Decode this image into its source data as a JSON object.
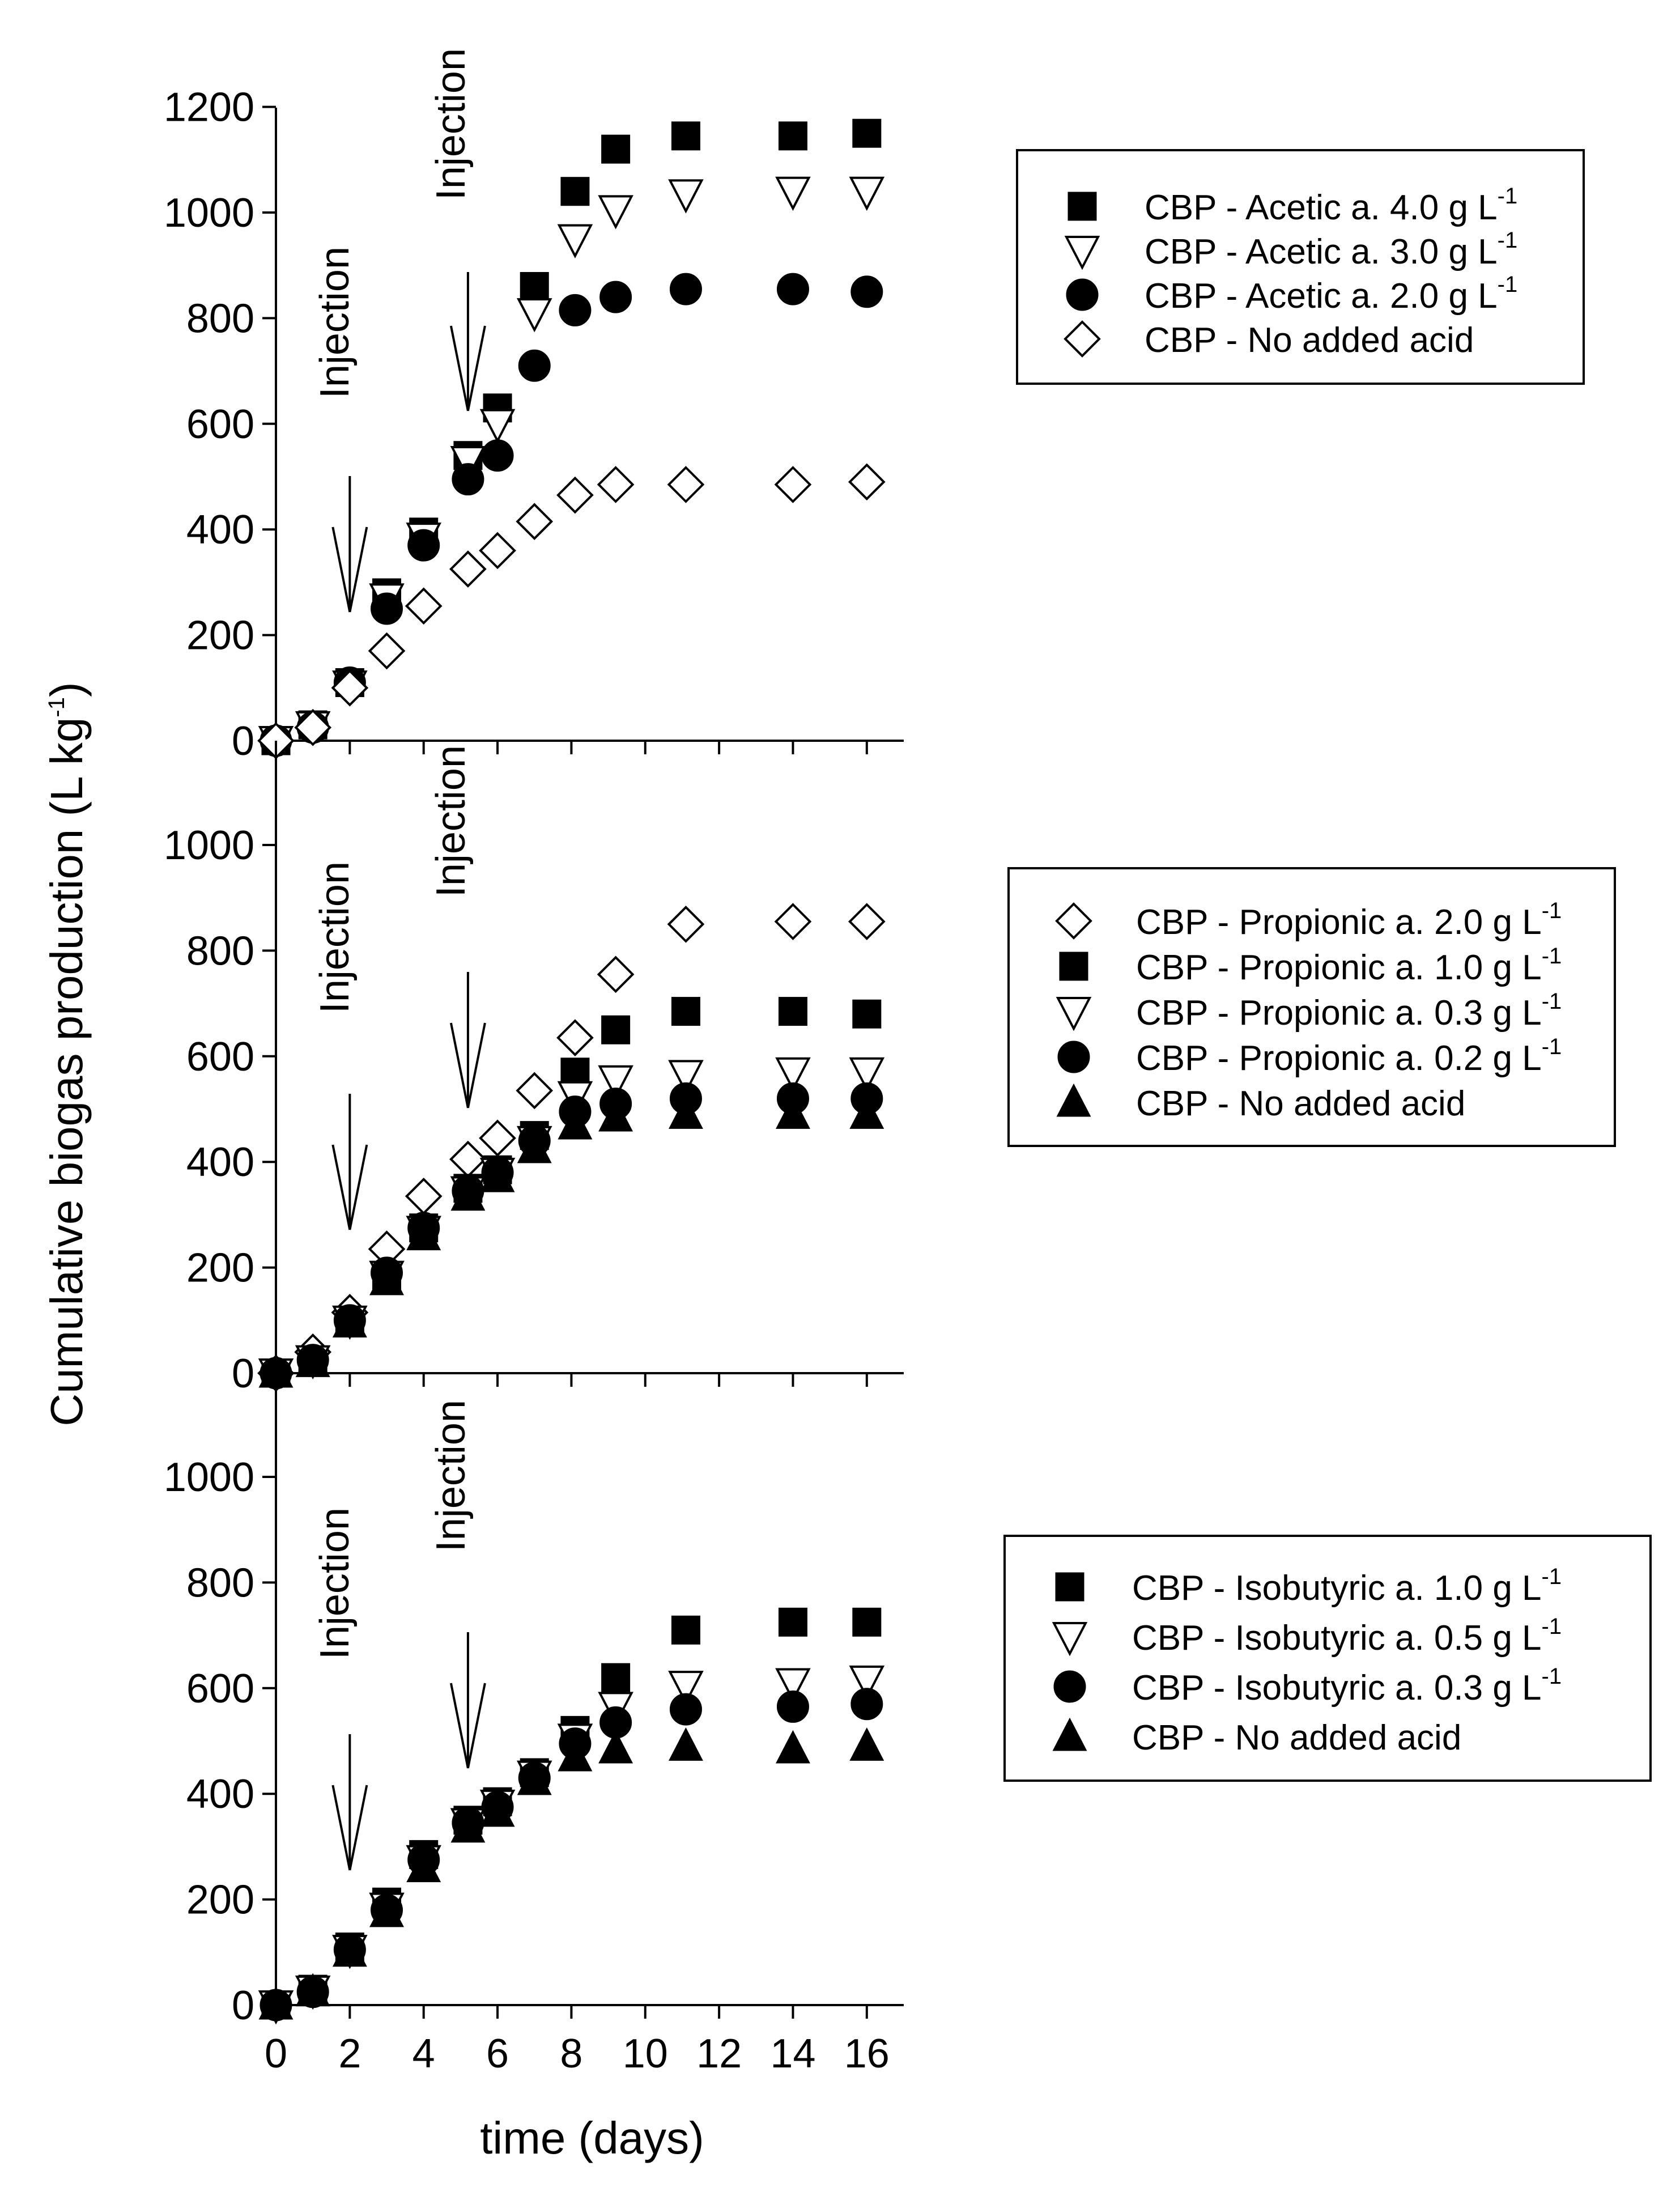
{
  "chart_data": [
    {
      "type": "scatter",
      "panel": "top",
      "ylim": [
        0,
        1200
      ],
      "yticks": [
        0,
        200,
        400,
        600,
        800,
        1000,
        1200
      ],
      "injections": [
        {
          "x": 2,
          "label": "Injection"
        },
        {
          "x": 5.2,
          "label": "Injection"
        }
      ],
      "legend": {
        "placement": "top-right"
      },
      "series": [
        {
          "name": "CBP - Acetic a. 4.0 g L",
          "sup": "-1",
          "marker": "square-filled",
          "x": [
            0,
            1,
            2,
            3,
            4,
            5.2,
            6,
            7,
            8.1,
            9.2,
            11.1,
            14,
            16
          ],
          "y": [
            0,
            30,
            110,
            280,
            395,
            540,
            630,
            860,
            1040,
            1120,
            1145,
            1145,
            1150
          ]
        },
        {
          "name": "CBP - Acetic a. 3.0 g L",
          "sup": "-1",
          "marker": "triangle-down-open",
          "x": [
            0,
            1,
            2,
            3,
            4,
            5.2,
            6,
            7,
            8.1,
            9.2,
            11.1,
            14,
            16
          ],
          "y": [
            0,
            28,
            105,
            270,
            385,
            530,
            600,
            810,
            950,
            1005,
            1035,
            1040,
            1040
          ]
        },
        {
          "name": "CBP - Acetic a. 2.0 g L",
          "sup": "-1",
          "marker": "circle-filled",
          "x": [
            0,
            1,
            2,
            3,
            4,
            5.2,
            6,
            7,
            8.1,
            9.2,
            11.1,
            14,
            16
          ],
          "y": [
            0,
            25,
            110,
            250,
            370,
            495,
            540,
            710,
            815,
            840,
            855,
            855,
            850
          ]
        },
        {
          "name": "CBP - No added acid",
          "sup": "",
          "marker": "diamond-open",
          "x": [
            0,
            1,
            2,
            3,
            4,
            5.2,
            6,
            7,
            8.1,
            9.2,
            11.1,
            14,
            16
          ],
          "y": [
            0,
            25,
            100,
            170,
            255,
            325,
            360,
            415,
            465,
            485,
            485,
            485,
            490
          ]
        }
      ]
    },
    {
      "type": "scatter",
      "panel": "middle",
      "ylim": [
        0,
        1200
      ],
      "yticks": [
        0,
        200,
        400,
        600,
        800,
        1000
      ],
      "injections": [
        {
          "x": 2,
          "label": "Injection"
        },
        {
          "x": 5.2,
          "label": "Injection"
        }
      ],
      "legend": {
        "placement": "right"
      },
      "series": [
        {
          "name": "CBP - Propionic a. 2.0 g L",
          "sup": "-1",
          "marker": "diamond-open",
          "x": [
            0,
            1,
            2,
            3,
            4,
            5.2,
            6,
            7,
            8.1,
            9.2,
            11.1,
            14,
            16
          ],
          "y": [
            0,
            40,
            115,
            235,
            335,
            405,
            445,
            535,
            635,
            755,
            850,
            855,
            855
          ]
        },
        {
          "name": "CBP - Propionic a. 1.0 g L",
          "sup": "-1",
          "marker": "square-filled",
          "x": [
            0,
            1,
            2,
            3,
            4,
            5.2,
            6,
            7,
            8.1,
            9.2,
            11.1,
            14,
            16
          ],
          "y": [
            0,
            25,
            100,
            185,
            275,
            350,
            385,
            450,
            570,
            650,
            685,
            685,
            680
          ]
        },
        {
          "name": "CBP - Propionic a. 0.3 g L",
          "sup": "-1",
          "marker": "triangle-down-open",
          "x": [
            0,
            1,
            2,
            3,
            4,
            5.2,
            6,
            7,
            8.1,
            9.2,
            11.1,
            14,
            16
          ],
          "y": [
            0,
            25,
            100,
            185,
            270,
            345,
            380,
            440,
            525,
            555,
            565,
            570,
            570
          ]
        },
        {
          "name": "CBP - Propionic a. 0.2 g L",
          "sup": "-1",
          "marker": "circle-filled",
          "x": [
            0,
            1,
            2,
            3,
            4,
            5.2,
            6,
            7,
            8.1,
            9.2,
            11.1,
            14,
            16
          ],
          "y": [
            0,
            25,
            100,
            190,
            275,
            345,
            380,
            440,
            495,
            510,
            520,
            520,
            520
          ]
        },
        {
          "name": "CBP - No added acid",
          "sup": "",
          "marker": "triangle-up-filled",
          "x": [
            0,
            1,
            2,
            3,
            4,
            5.2,
            6,
            7,
            8.1,
            9.2,
            11.1,
            14,
            16
          ],
          "y": [
            0,
            20,
            95,
            175,
            260,
            335,
            370,
            425,
            470,
            485,
            490,
            490,
            490
          ]
        }
      ]
    },
    {
      "type": "scatter",
      "panel": "bottom",
      "ylim": [
        0,
        1200
      ],
      "yticks": [
        0,
        200,
        400,
        600,
        800,
        1000
      ],
      "xlim": [
        0,
        17
      ],
      "xticks": [
        0,
        2,
        4,
        6,
        8,
        10,
        12,
        14,
        16
      ],
      "xlabel": "time (days)",
      "injections": [
        {
          "x": 2,
          "label": "Injection"
        },
        {
          "x": 5.2,
          "label": "Injection"
        }
      ],
      "legend": {
        "placement": "right"
      },
      "series": [
        {
          "name": "CBP - Isobutyric a. 1.0 g L",
          "sup": "-1",
          "marker": "square-filled",
          "x": [
            0,
            1,
            2,
            3,
            4,
            5.2,
            6,
            7,
            8.1,
            9.2,
            11.1,
            14,
            16
          ],
          "y": [
            0,
            30,
            110,
            195,
            285,
            350,
            385,
            440,
            520,
            620,
            710,
            725,
            725
          ]
        },
        {
          "name": "CBP - Isobutyric a. 0.5 g L",
          "sup": "-1",
          "marker": "triangle-down-open",
          "x": [
            0,
            1,
            2,
            3,
            4,
            5.2,
            6,
            7,
            8.1,
            9.2,
            11.1,
            14,
            16
          ],
          "y": [
            0,
            28,
            105,
            185,
            275,
            345,
            380,
            435,
            505,
            565,
            605,
            610,
            615
          ]
        },
        {
          "name": "CBP - Isobutyric a. 0.3 g L",
          "sup": "-1",
          "marker": "circle-filled",
          "x": [
            0,
            1,
            2,
            3,
            4,
            5.2,
            6,
            7,
            8.1,
            9.2,
            11.1,
            14,
            16
          ],
          "y": [
            0,
            25,
            105,
            180,
            275,
            345,
            375,
            430,
            495,
            535,
            560,
            565,
            570
          ]
        },
        {
          "name": "CBP - No added acid",
          "sup": "",
          "marker": "triangle-up-filled",
          "x": [
            0,
            1,
            2,
            3,
            4,
            5.2,
            6,
            7,
            8.1,
            9.2,
            11.1,
            14,
            16
          ],
          "y": [
            0,
            25,
            100,
            175,
            260,
            335,
            365,
            425,
            470,
            485,
            490,
            485,
            490
          ]
        }
      ]
    }
  ],
  "ylabel": {
    "text": "Cumulative biogas production (L kg",
    "sup": "-1",
    "close": ")"
  }
}
